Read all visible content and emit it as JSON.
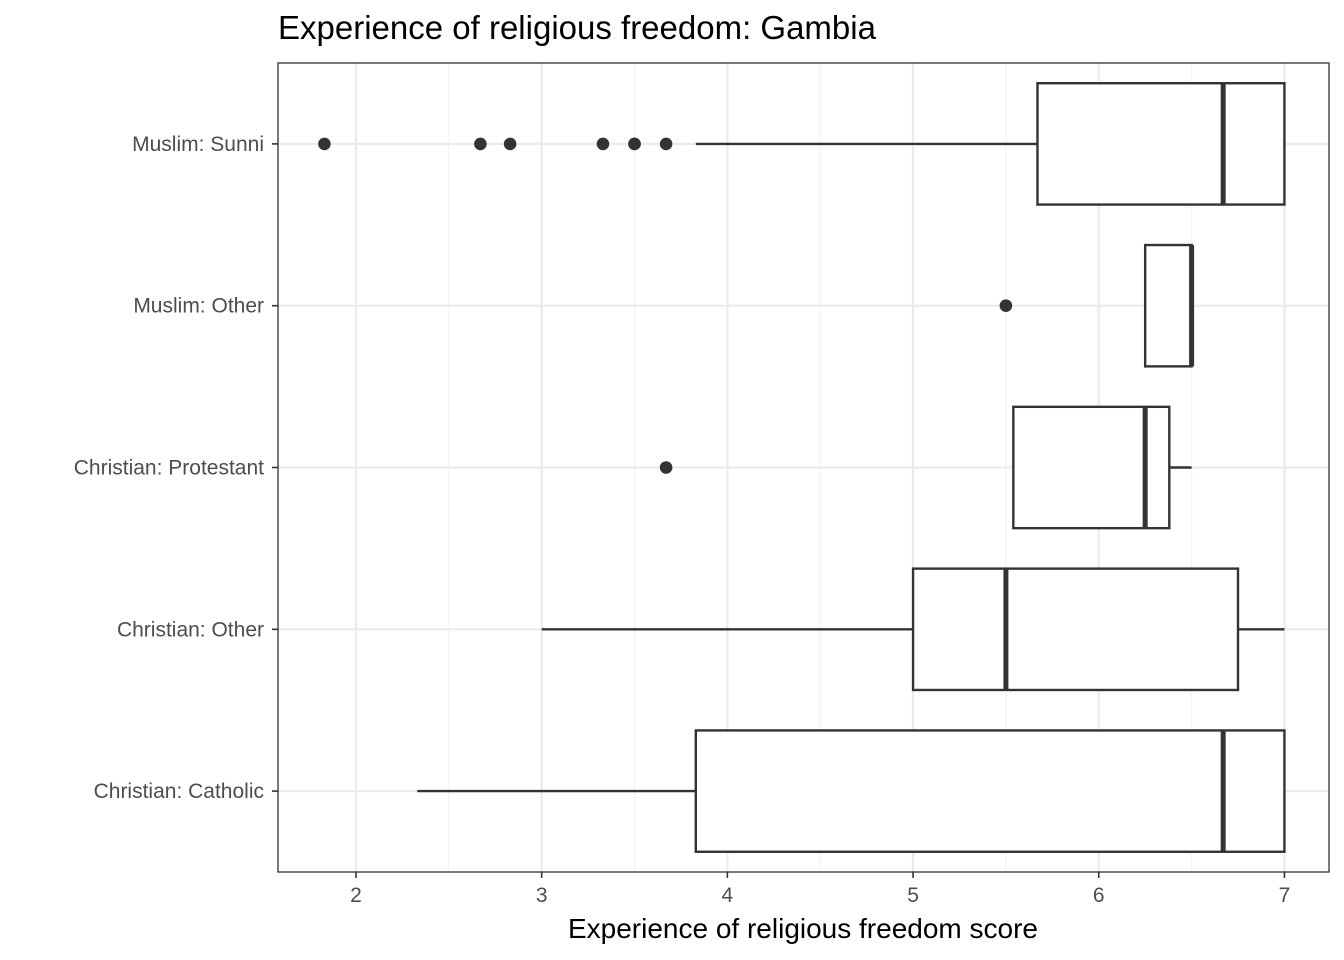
{
  "chart_data": {
    "type": "boxplot",
    "title": "Experience of religious freedom: Gambia",
    "xlabel": "Experience of religious freedom score",
    "ylabel": "",
    "xlim": [
      1.58,
      7.24
    ],
    "x_ticks": [
      "2",
      "3",
      "4",
      "5",
      "6",
      "7"
    ],
    "grid": true,
    "orientation": "horizontal",
    "categories": [
      "Muslim: Sunni",
      "Muslim: Other",
      "Christian: Protestant",
      "Christian: Other",
      "Christian: Catholic"
    ],
    "boxes": [
      {
        "category": "Muslim: Sunni",
        "whisker_low": 3.83,
        "q1": 5.67,
        "median": 6.67,
        "q3": 7.0,
        "whisker_high": 7.0,
        "outliers": [
          1.83,
          2.67,
          2.83,
          3.33,
          3.5,
          3.5,
          3.67
        ]
      },
      {
        "category": "Muslim: Other",
        "whisker_low": 6.25,
        "q1": 6.25,
        "median": 6.5,
        "q3": 6.5,
        "whisker_high": 6.5,
        "outliers": [
          5.5
        ]
      },
      {
        "category": "Christian: Protestant",
        "whisker_low": 5.54,
        "q1": 5.54,
        "median": 6.25,
        "q3": 6.38,
        "whisker_high": 6.5,
        "outliers": [
          3.67
        ]
      },
      {
        "category": "Christian: Other",
        "whisker_low": 3.0,
        "q1": 5.0,
        "median": 5.5,
        "q3": 6.75,
        "whisker_high": 7.0,
        "outliers": []
      },
      {
        "category": "Christian: Catholic",
        "whisker_low": 2.33,
        "q1": 3.83,
        "median": 6.67,
        "q3": 7.0,
        "whisker_high": 7.0,
        "outliers": []
      }
    ]
  }
}
